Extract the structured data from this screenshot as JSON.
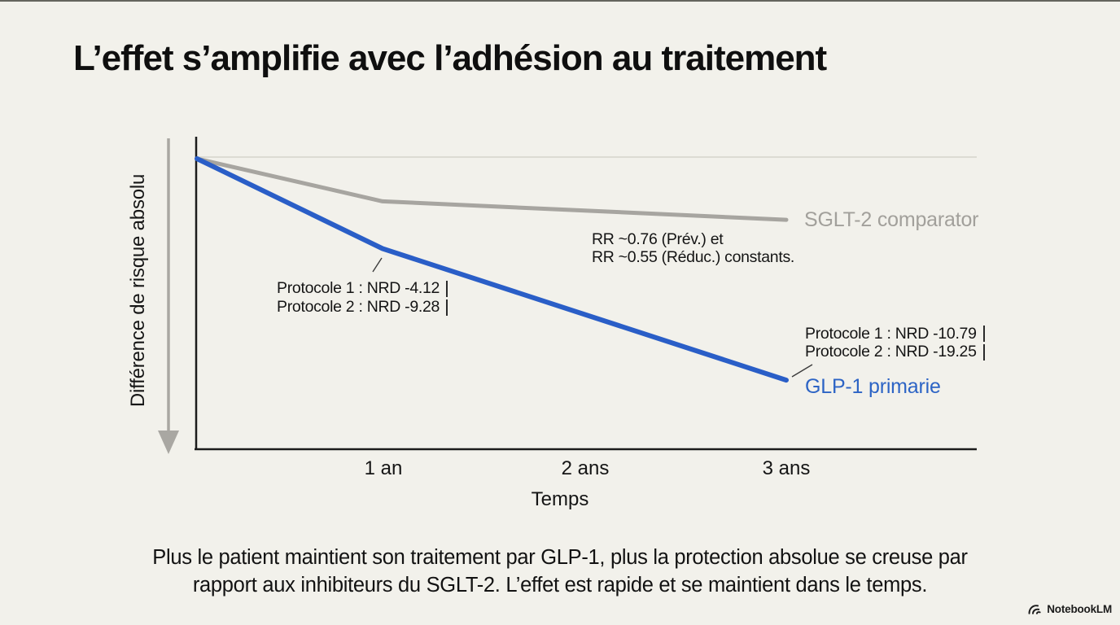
{
  "page": {
    "background_color": "#f2f1eb",
    "accent_blue": "#2a5ec7",
    "accent_gray": "#a7a5a0"
  },
  "title": "L’effet s’amplifie avec l’adhésion au traitement",
  "chart_data": {
    "type": "line",
    "title": "",
    "xlabel": "Temps",
    "ylabel": "Différence de risque absolu",
    "x_tick_labels": [
      "1 an",
      "2 ans",
      "3 ans"
    ],
    "x_tick_years": [
      1,
      2,
      3
    ],
    "baseline_value": 0,
    "ylim": [
      -25,
      2
    ],
    "grid": false,
    "y_axis_style": "downward gray arrow, no numeric ticks; thin light baseline at value 0",
    "series": [
      {
        "name": "SGLT-2 comparator",
        "color": "#a7a5a0",
        "label_color": "#a2a09b",
        "x_years": [
          0,
          1,
          3
        ],
        "values_est_nrd": [
          0,
          -3.7,
          -5.3
        ]
      },
      {
        "name": "GLP-1 primarie",
        "color": "#2a5ec7",
        "label_color": "#2d64c5",
        "x_years": [
          0,
          1,
          3
        ],
        "values_est_nrd": [
          0,
          -7.8,
          -19.2
        ]
      }
    ],
    "annotations": [
      {
        "id": "nrd-1an",
        "lines": [
          "Protocole 1 : NRD -4.12",
          "Protocole 2 : NRD -9.28"
        ],
        "has_end_bars": true
      },
      {
        "id": "rr-constants",
        "lines": [
          "RR ~0.76 (Prév.) et",
          "RR ~0.55 (Réduc.) constants."
        ],
        "has_end_bars": false
      },
      {
        "id": "nrd-3ans",
        "lines": [
          "Protocole 1 : NRD -10.79",
          "Protocole 2 : NRD -19.25"
        ],
        "has_end_bars": true
      }
    ]
  },
  "caption": {
    "lines": [
      "Plus le patient maintient son traitement par GLP-1, plus la protection absolue se creuse par",
      "rapport aux inhibiteurs du SGLT-2. L’effet est rapide et se maintient dans le temps."
    ]
  },
  "footer": {
    "brand": "NotebookLM"
  }
}
